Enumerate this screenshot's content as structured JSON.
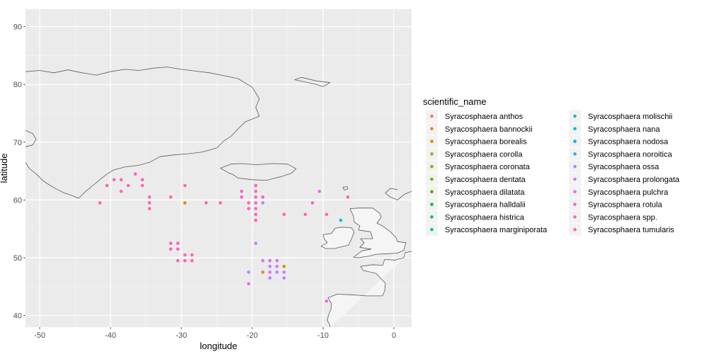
{
  "chart_data": {
    "type": "scatter",
    "title": "",
    "xlabel": "longitude",
    "ylabel": "latitude",
    "xlim": [
      -52,
      2.5
    ],
    "ylim": [
      38,
      93
    ],
    "xticks": [
      -50,
      -40,
      -30,
      -20,
      -10,
      0
    ],
    "yticks": [
      40,
      50,
      60,
      70,
      80,
      90
    ],
    "grid": true,
    "background": "#ebebeb",
    "legend": {
      "title": "scientific_name",
      "placement": "right",
      "columns": 2
    },
    "series": [
      {
        "name": "Syracosphaera anthos",
        "color": "#F8766D",
        "points": []
      },
      {
        "name": "Syracosphaera bannockii",
        "color": "#EA8331",
        "points": [
          [
            -18.5,
            47.5
          ]
        ]
      },
      {
        "name": "Syracosphaera borealis",
        "color": "#D89000",
        "points": [
          [
            -29.5,
            59.5
          ],
          [
            -15.5,
            48.5
          ]
        ]
      },
      {
        "name": "Syracosphaera corolla",
        "color": "#C09B00",
        "points": []
      },
      {
        "name": "Syracosphaera coronata",
        "color": "#A3A500",
        "points": []
      },
      {
        "name": "Syracosphaera dentata",
        "color": "#7CAE00",
        "points": []
      },
      {
        "name": "Syracosphaera dilatata",
        "color": "#39B600",
        "points": []
      },
      {
        "name": "Syracosphaera halldalii",
        "color": "#00BB4E",
        "points": []
      },
      {
        "name": "Syracosphaera histrica",
        "color": "#00BF7D",
        "points": []
      },
      {
        "name": "Syracosphaera marginiporata",
        "color": "#00C1A3",
        "points": []
      },
      {
        "name": "Syracosphaera molischii",
        "color": "#00BFC4",
        "points": []
      },
      {
        "name": "Syracosphaera nana",
        "color": "#00BAE0",
        "points": [
          [
            -7.5,
            56.5
          ]
        ]
      },
      {
        "name": "Syracosphaera nodosa",
        "color": "#00B0F6",
        "points": []
      },
      {
        "name": "Syracosphaera noroitica",
        "color": "#35A2FF",
        "points": []
      },
      {
        "name": "Syracosphaera ossa",
        "color": "#9590FF",
        "points": [
          [
            -18.5,
            59.5
          ]
        ]
      },
      {
        "name": "Syracosphaera prolongata",
        "color": "#C77CFF",
        "points": [
          [
            -18.5,
            49.5
          ],
          [
            -17.5,
            49.5
          ],
          [
            -16.5,
            49.5
          ],
          [
            -17.5,
            48.5
          ],
          [
            -16.5,
            48.5
          ],
          [
            -17.5,
            47.5
          ],
          [
            -16.5,
            47.5
          ],
          [
            -15.5,
            47.5
          ],
          [
            -17.5,
            46.5
          ],
          [
            -15.5,
            46.5
          ],
          [
            -20.5,
            47.5
          ],
          [
            -19.5,
            52.5
          ]
        ]
      },
      {
        "name": "Syracosphaera pulchra",
        "color": "#E76BF3",
        "points": [
          [
            -10.5,
            61.5
          ],
          [
            -20.5,
            45.5
          ]
        ]
      },
      {
        "name": "Syracosphaera rotula",
        "color": "#FA62DB",
        "points": [
          [
            -9.5,
            42.5
          ]
        ]
      },
      {
        "name": "Syracosphaera spp.",
        "color": "#FF62BC",
        "points": [
          [
            -41.5,
            59.5
          ],
          [
            -40.5,
            62.5
          ],
          [
            -39.5,
            63.5
          ],
          [
            -38.5,
            63.5
          ],
          [
            -38.5,
            61.5
          ],
          [
            -37.5,
            62.5
          ],
          [
            -36.5,
            64.5
          ],
          [
            -35.5,
            63.5
          ],
          [
            -35.5,
            62.5
          ],
          [
            -34.5,
            60.5
          ],
          [
            -34.5,
            59.5
          ],
          [
            -34.5,
            58.5
          ],
          [
            -31.5,
            60.5
          ],
          [
            -29.5,
            62.5
          ],
          [
            -26.5,
            59.5
          ],
          [
            -24.5,
            59.5
          ],
          [
            -21.5,
            61.5
          ],
          [
            -21.5,
            60.5
          ],
          [
            -20.5,
            59.5
          ],
          [
            -20.5,
            58.5
          ],
          [
            -19.5,
            62.5
          ],
          [
            -19.5,
            61.5
          ],
          [
            -19.5,
            60.5
          ],
          [
            -19.5,
            59.5
          ],
          [
            -19.5,
            58.5
          ],
          [
            -19.5,
            57.5
          ],
          [
            -19.5,
            56.5
          ],
          [
            -18.5,
            60.5
          ],
          [
            -15.5,
            57.5
          ],
          [
            -12.5,
            57.5
          ],
          [
            -11.5,
            59.5
          ],
          [
            -9.5,
            57.5
          ],
          [
            -6.5,
            60.5
          ],
          [
            -31.5,
            52.5
          ],
          [
            -31.5,
            51.5
          ],
          [
            -30.5,
            52.5
          ],
          [
            -30.5,
            51.5
          ],
          [
            -29.5,
            50.5
          ],
          [
            -28.5,
            50.5
          ],
          [
            -30.5,
            49.5
          ],
          [
            -29.5,
            49.5
          ],
          [
            -28.5,
            49.5
          ]
        ]
      },
      {
        "name": "Syracosphaera tumularis",
        "color": "#FF6C91",
        "points": []
      }
    ]
  }
}
